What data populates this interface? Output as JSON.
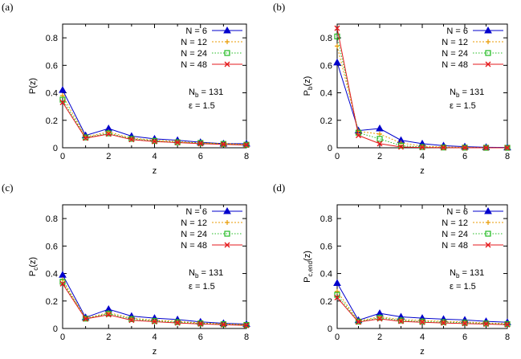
{
  "series_styles": [
    {
      "color": "#0000cc",
      "marker": "triangle",
      "dash": ""
    },
    {
      "color": "#e89a00",
      "marker": "plus",
      "dash": "2,2"
    },
    {
      "color": "#22bb22",
      "marker": "square",
      "dash": "1.5,2"
    },
    {
      "color": "#e41a1c",
      "marker": "cross",
      "dash": ""
    }
  ],
  "chart_data": [
    {
      "type": "line",
      "panel_label": "(a)",
      "ylabel": "P(z)",
      "ylabel_sub": "",
      "ylabel_tail": "",
      "xlabel": "z",
      "xlim": [
        0,
        8
      ],
      "ylim": [
        0,
        0.9
      ],
      "xticks": [
        "0",
        "2",
        "4",
        "6",
        "8"
      ],
      "yticks": [
        "0",
        "0.2",
        "0.4",
        "0.6",
        "0.8"
      ],
      "x": [
        0,
        1,
        2,
        3,
        4,
        5,
        6,
        7,
        8
      ],
      "annotations": {
        "nb_main": "N",
        "nb_sub": "b",
        "nb_value": " = 131",
        "eps": "ε = 1.5"
      },
      "series": [
        {
          "name": "N =   6",
          "values": [
            0.42,
            0.09,
            0.14,
            0.085,
            0.065,
            0.055,
            0.04,
            0.03,
            0.03
          ]
        },
        {
          "name": "N = 12",
          "values": [
            0.38,
            0.08,
            0.115,
            0.07,
            0.055,
            0.045,
            0.035,
            0.03,
            0.025
          ]
        },
        {
          "name": "N = 24",
          "values": [
            0.35,
            0.075,
            0.105,
            0.065,
            0.05,
            0.04,
            0.035,
            0.028,
            0.022
          ]
        },
        {
          "name": "N = 48",
          "values": [
            0.33,
            0.07,
            0.1,
            0.06,
            0.045,
            0.038,
            0.03,
            0.025,
            0.02
          ]
        }
      ]
    },
    {
      "type": "line",
      "panel_label": "(b)",
      "ylabel": "P",
      "ylabel_sub": "b",
      "ylabel_tail": "(z)",
      "xlabel": "z",
      "xlim": [
        0,
        8
      ],
      "ylim": [
        0,
        0.9
      ],
      "xticks": [
        "0",
        "2",
        "4",
        "6",
        "8"
      ],
      "yticks": [
        "0",
        "0.2",
        "0.4",
        "0.6",
        "0.8"
      ],
      "x": [
        0,
        1,
        2,
        3,
        4,
        5,
        6,
        7,
        8
      ],
      "annotations": {
        "nb_main": "N",
        "nb_sub": "b",
        "nb_value": " = 131",
        "eps": "ε = 1.5"
      },
      "series": [
        {
          "name": "N =   6",
          "values": [
            0.62,
            0.125,
            0.14,
            0.055,
            0.03,
            0.015,
            0.008,
            0.004,
            0.002
          ]
        },
        {
          "name": "N = 12",
          "values": [
            0.74,
            0.12,
            0.1,
            0.035,
            0.012,
            0.006,
            0.003,
            0.001,
            0.0
          ]
        },
        {
          "name": "N = 24",
          "values": [
            0.81,
            0.11,
            0.065,
            0.015,
            0.005,
            0.002,
            0.001,
            0.0,
            0.0
          ]
        },
        {
          "name": "N = 48",
          "values": [
            0.87,
            0.09,
            0.03,
            0.006,
            0.002,
            0.001,
            0.0,
            0.0,
            0.0
          ]
        }
      ]
    },
    {
      "type": "line",
      "panel_label": "(c)",
      "ylabel": "P",
      "ylabel_sub": "c",
      "ylabel_tail": "(z)",
      "xlabel": "z",
      "xlim": [
        0,
        8
      ],
      "ylim": [
        0,
        0.9
      ],
      "xticks": [
        "0",
        "2",
        "4",
        "6",
        "8"
      ],
      "yticks": [
        "0",
        "0.2",
        "0.4",
        "0.6",
        "0.8"
      ],
      "x": [
        0,
        1,
        2,
        3,
        4,
        5,
        6,
        7,
        8
      ],
      "annotations": {
        "nb_main": "N",
        "nb_sub": "b",
        "nb_value": " = 131",
        "eps": "ε = 1.5"
      },
      "series": [
        {
          "name": "N =   6",
          "values": [
            0.39,
            0.08,
            0.14,
            0.09,
            0.075,
            0.065,
            0.048,
            0.038,
            0.032
          ]
        },
        {
          "name": "N = 12",
          "values": [
            0.355,
            0.075,
            0.115,
            0.075,
            0.06,
            0.052,
            0.04,
            0.034,
            0.028
          ]
        },
        {
          "name": "N = 24",
          "values": [
            0.34,
            0.072,
            0.108,
            0.068,
            0.055,
            0.046,
            0.037,
            0.031,
            0.026
          ]
        },
        {
          "name": "N = 48",
          "values": [
            0.325,
            0.07,
            0.1,
            0.06,
            0.05,
            0.04,
            0.033,
            0.028,
            0.022
          ]
        }
      ]
    },
    {
      "type": "line",
      "panel_label": "(d)",
      "ylabel": "P",
      "ylabel_sub": "c,end",
      "ylabel_tail": "(z)",
      "xlabel": "z",
      "xlim": [
        0,
        8
      ],
      "ylim": [
        0,
        0.9
      ],
      "xticks": [
        "0",
        "2",
        "4",
        "6",
        "8"
      ],
      "yticks": [
        "0",
        "0.2",
        "0.4",
        "0.6",
        "0.8"
      ],
      "x": [
        0,
        1,
        2,
        3,
        4,
        5,
        6,
        7,
        8
      ],
      "annotations": {
        "nb_main": "N",
        "nb_sub": "b",
        "nb_value": " = 131",
        "eps": "ε = 1.5"
      },
      "series": [
        {
          "name": "N =   6",
          "values": [
            0.33,
            0.06,
            0.11,
            0.085,
            0.075,
            0.068,
            0.062,
            0.052,
            0.045
          ]
        },
        {
          "name": "N = 12",
          "values": [
            0.27,
            0.055,
            0.085,
            0.065,
            0.058,
            0.052,
            0.048,
            0.04,
            0.036
          ]
        },
        {
          "name": "N = 24",
          "values": [
            0.245,
            0.05,
            0.078,
            0.058,
            0.05,
            0.046,
            0.042,
            0.036,
            0.032
          ]
        },
        {
          "name": "N = 48",
          "values": [
            0.225,
            0.047,
            0.07,
            0.052,
            0.045,
            0.04,
            0.036,
            0.032,
            0.028
          ]
        }
      ]
    }
  ]
}
